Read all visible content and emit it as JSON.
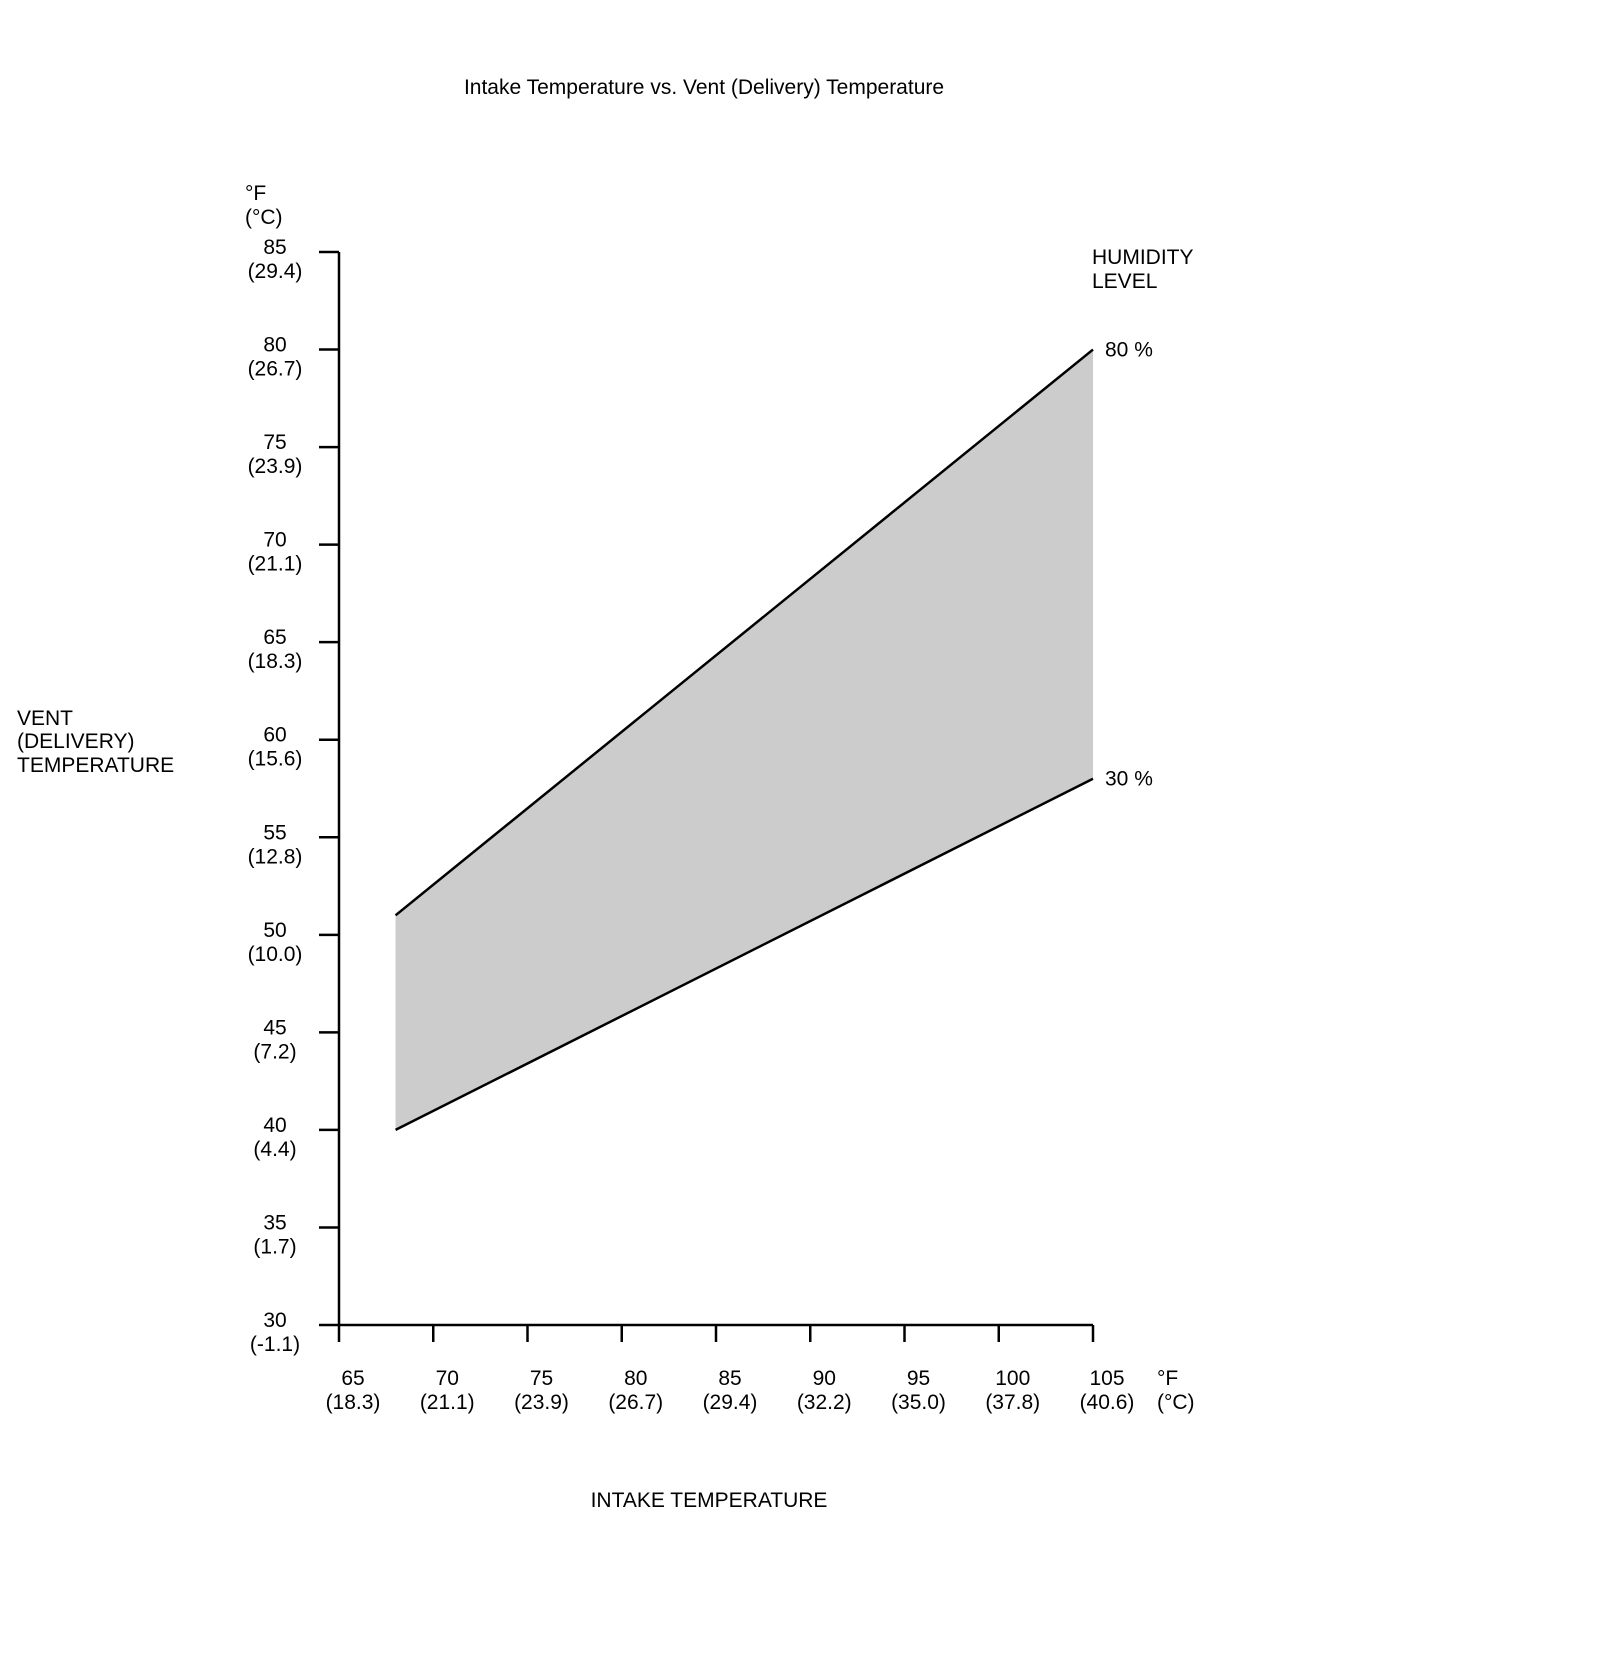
{
  "chart_data": {
    "type": "area_band",
    "title": "Intake Temperature vs. Vent (Delivery) Temperature",
    "xlabel": "INTAKE TEMPERATURE",
    "ylabel": [
      "VENT",
      "(DELIVERY)",
      "TEMPERATURE"
    ],
    "x_unit": [
      "°F",
      "(°C)"
    ],
    "y_unit": [
      "°F",
      "(°C)"
    ],
    "legend_title": [
      "HUMIDITY",
      "LEVEL"
    ],
    "x": [
      68,
      105
    ],
    "series": [
      {
        "name": "80 %",
        "color": "#000000",
        "values": [
          51,
          80
        ]
      },
      {
        "name": "30 %",
        "color": "#000000",
        "values": [
          40,
          58
        ]
      }
    ],
    "fill_color": "#cccccc",
    "xlim": [
      65,
      105
    ],
    "xticks": [
      65,
      70,
      75,
      80,
      85,
      90,
      95,
      100,
      105
    ],
    "xticks_celsius": [
      "(18.3)",
      "(21.1)",
      "(23.9)",
      "(26.7)",
      "(29.4)",
      "(32.2)",
      "(35.0)",
      "(37.8)",
      "(40.6)"
    ],
    "ylim": [
      30,
      85
    ],
    "yticks": [
      30,
      35,
      40,
      45,
      50,
      55,
      60,
      65,
      70,
      75,
      80,
      85
    ],
    "yticks_celsius": [
      "(-1.1)",
      "(1.7)",
      "(4.4)",
      "(7.2)",
      "(10.0)",
      "(12.8)",
      "(15.6)",
      "(18.3)",
      "(21.1)",
      "(23.9)",
      "(26.7)",
      "(29.4)"
    ]
  }
}
